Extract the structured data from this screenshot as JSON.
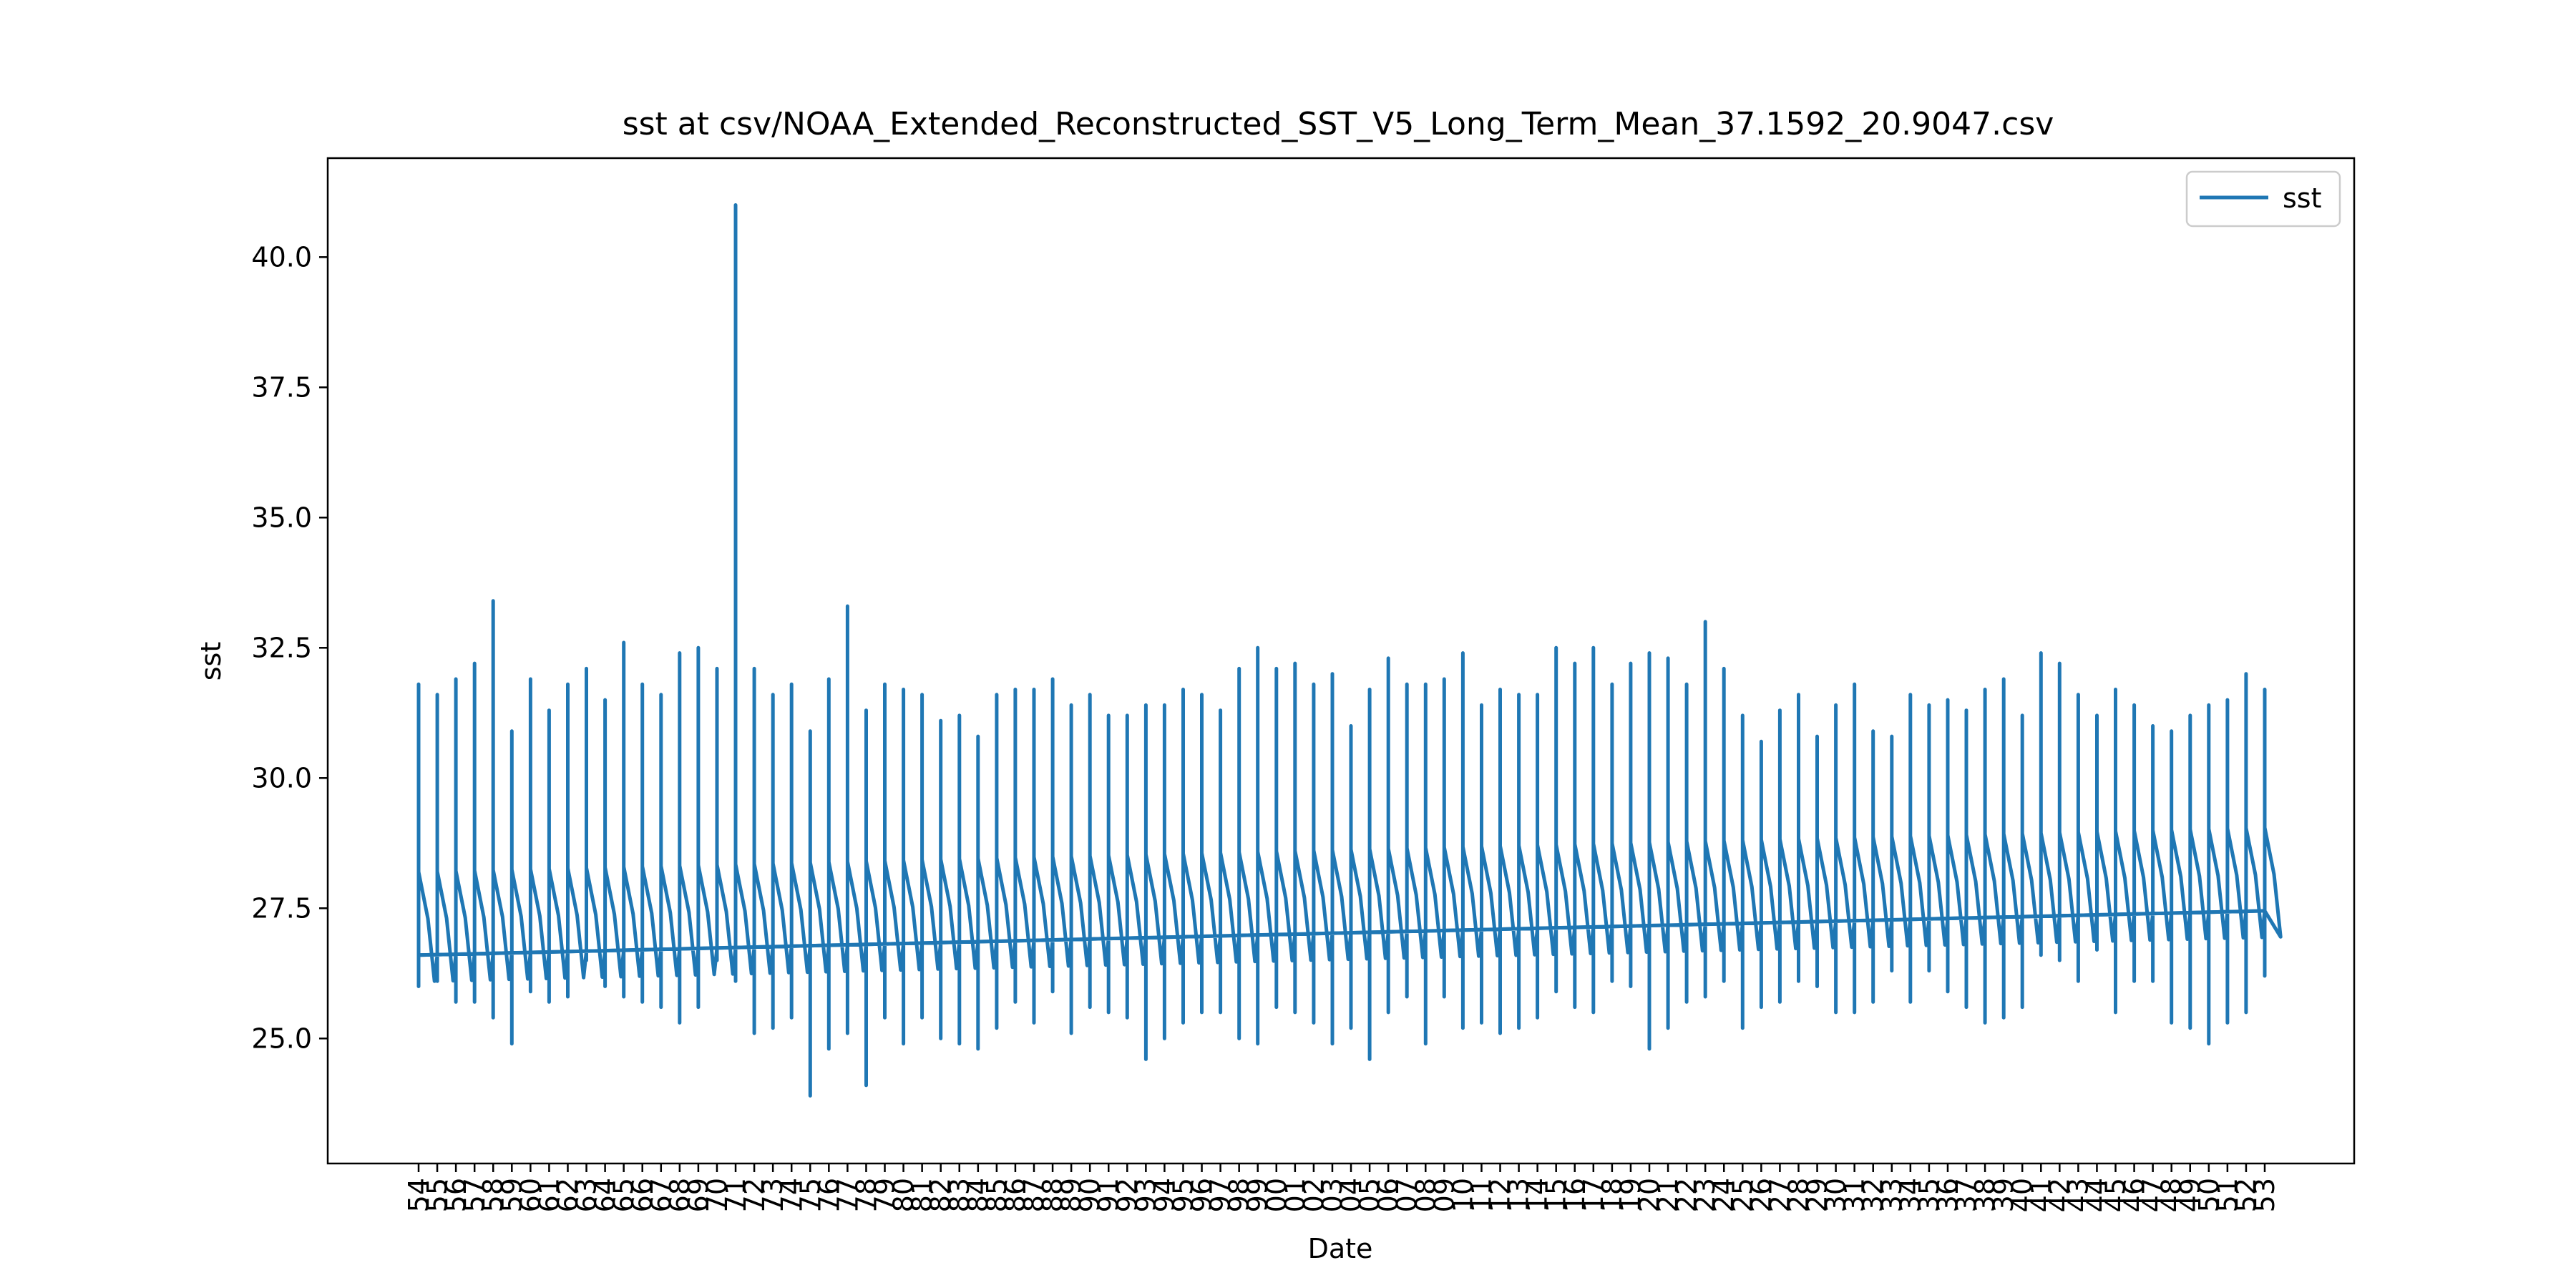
{
  "chart_data": {
    "type": "line",
    "title": "sst at csv/NOAA_Extended_Reconstructed_SST_V5_Long_Term_Mean_37.1592_20.9047.csv",
    "xlabel": "Date",
    "ylabel": "sst",
    "ylim": [
      22.6,
      41.9
    ],
    "yticks": [
      "25.0",
      "27.5",
      "30.0",
      "32.5",
      "35.0",
      "37.5",
      "40.0"
    ],
    "categories": [
      "54",
      "55",
      "56",
      "57",
      "58",
      "59",
      "60",
      "61",
      "62",
      "63",
      "64",
      "65",
      "66",
      "67",
      "68",
      "69",
      "70",
      "71",
      "72",
      "73",
      "74",
      "75",
      "76",
      "77",
      "78",
      "79",
      "80",
      "81",
      "82",
      "83",
      "84",
      "85",
      "86",
      "87",
      "88",
      "89",
      "90",
      "91",
      "92",
      "93",
      "94",
      "95",
      "96",
      "97",
      "98",
      "99",
      "00",
      "01",
      "02",
      "03",
      "04",
      "05",
      "06",
      "07",
      "08",
      "09",
      "10",
      "11",
      "12",
      "13",
      "14",
      "15",
      "16",
      "17",
      "18",
      "19",
      "20",
      "21",
      "22",
      "23",
      "24",
      "25",
      "26",
      "27",
      "28",
      "29",
      "30",
      "31",
      "32",
      "33",
      "34",
      "35",
      "36",
      "37",
      "38",
      "39",
      "40",
      "41",
      "42",
      "43",
      "44",
      "45",
      "46",
      "47",
      "48",
      "49",
      "50",
      "51",
      "52",
      "53"
    ],
    "grid": false,
    "legend_position": "upper right",
    "series": [
      {
        "name": "sst",
        "color": "#1f77b4",
        "trend_start": 26.6,
        "trend_end": 27.45,
        "peaks": [
          31.8,
          31.6,
          31.9,
          32.2,
          33.4,
          30.9,
          31.9,
          31.3,
          31.8,
          32.1,
          31.5,
          32.6,
          31.8,
          31.6,
          32.4,
          32.5,
          32.1,
          41.0,
          32.1,
          31.6,
          31.8,
          30.9,
          31.9,
          33.3,
          31.3,
          31.8,
          31.7,
          31.6,
          31.1,
          31.2,
          30.8,
          31.6,
          31.7,
          31.7,
          31.9,
          31.4,
          31.6,
          31.2,
          31.2,
          31.4,
          31.4,
          31.7,
          31.6,
          31.3,
          32.1,
          32.5,
          32.1,
          32.2,
          31.8,
          32.0,
          31.0,
          31.7,
          32.3,
          31.8,
          31.8,
          31.9,
          32.4,
          31.4,
          31.7,
          31.6,
          31.6,
          32.5,
          32.2,
          32.5,
          31.8,
          32.2,
          32.4,
          32.3,
          31.8,
          33.0,
          32.1,
          31.2,
          30.7,
          31.3,
          31.6,
          30.8,
          31.4,
          31.8,
          30.9,
          30.8,
          31.6,
          31.4,
          31.5,
          31.3,
          31.7,
          31.9,
          31.2,
          32.4,
          32.2,
          31.6,
          31.2,
          31.7,
          31.4,
          31.0,
          30.9,
          31.2,
          31.4,
          31.5,
          32.0,
          31.7
        ],
        "troughs": [
          26.0,
          26.1,
          25.7,
          25.7,
          25.4,
          24.9,
          25.9,
          25.7,
          25.8,
          26.5,
          26.0,
          25.8,
          25.7,
          25.6,
          25.3,
          25.6,
          26.5,
          26.1,
          25.1,
          25.2,
          25.4,
          23.9,
          24.8,
          25.1,
          24.1,
          25.4,
          24.9,
          25.4,
          25.0,
          24.9,
          24.8,
          25.2,
          25.7,
          25.3,
          25.9,
          25.1,
          25.6,
          25.5,
          25.4,
          24.6,
          25.0,
          25.3,
          25.5,
          25.5,
          25.0,
          24.9,
          25.6,
          25.5,
          25.3,
          24.9,
          25.2,
          24.6,
          25.5,
          25.8,
          24.9,
          25.8,
          25.2,
          25.3,
          25.1,
          25.2,
          25.4,
          25.9,
          25.6,
          25.5,
          26.1,
          26.0,
          24.8,
          25.2,
          25.7,
          25.8,
          26.1,
          25.2,
          25.6,
          25.7,
          26.1,
          26.0,
          25.5,
          25.5,
          25.7,
          26.3,
          25.7,
          26.3,
          25.9,
          25.6,
          25.3,
          25.4,
          25.6,
          26.6,
          26.5,
          26.1,
          26.7,
          25.5,
          26.1,
          26.1,
          25.3,
          25.2,
          24.9,
          25.3,
          25.5,
          26.2
        ]
      }
    ]
  }
}
